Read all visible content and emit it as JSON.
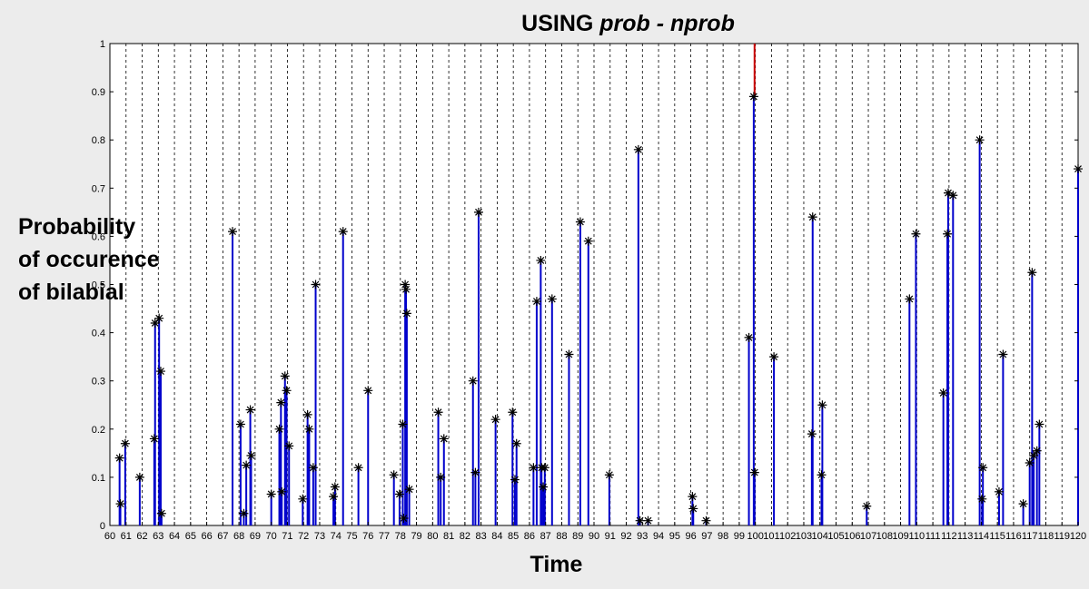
{
  "colors": {
    "stem": "#0000cc",
    "marker": "#000000",
    "marked": "#cc0000",
    "grid": "#000000",
    "plot_bg": "#ffffff"
  },
  "chart_data": {
    "type": "stem",
    "title_prefix": "USING",
    "title_var": "prob - nprob",
    "xlabel": "Time",
    "ylabel_lines": [
      "Probability",
      "of occurence",
      "of bilabial"
    ],
    "xlim": [
      60,
      120
    ],
    "ylim": [
      0,
      1
    ],
    "xticks": [
      60,
      61,
      62,
      63,
      64,
      65,
      66,
      67,
      68,
      69,
      70,
      71,
      72,
      73,
      74,
      75,
      76,
      77,
      78,
      79,
      80,
      81,
      82,
      83,
      84,
      85,
      86,
      87,
      88,
      89,
      90,
      91,
      92,
      93,
      94,
      95,
      96,
      97,
      98,
      99,
      100,
      101,
      102,
      103,
      104,
      105,
      106,
      107,
      108,
      109,
      110,
      111,
      112,
      113,
      114,
      115,
      116,
      117,
      118,
      119,
      120
    ],
    "yticks": [
      0,
      0.1,
      0.2,
      0.3,
      0.4,
      0.5,
      0.6,
      0.7,
      0.8,
      0.9,
      1
    ],
    "ytick_labels": [
      "0",
      "0.1",
      "0.2",
      "0.3",
      "0.4",
      "0.5",
      "0.6",
      "0.7",
      "0.8",
      "0.9",
      "1"
    ],
    "grid": "vertical dashed",
    "marked_time": 99.95,
    "marked_level": 0.89,
    "stems": [
      [
        60.6,
        0.14
      ],
      [
        60.65,
        0.045
      ],
      [
        60.95,
        0.17
      ],
      [
        61.85,
        0.1
      ],
      [
        62.75,
        0.18
      ],
      [
        62.8,
        0.42
      ],
      [
        63.05,
        0.43
      ],
      [
        63.15,
        0.32
      ],
      [
        63.2,
        0.025
      ],
      [
        67.6,
        0.61
      ],
      [
        68.1,
        0.21
      ],
      [
        68.3,
        0.025
      ],
      [
        68.45,
        0.125
      ],
      [
        68.7,
        0.24
      ],
      [
        68.75,
        0.145
      ],
      [
        70.0,
        0.065
      ],
      [
        70.5,
        0.2
      ],
      [
        70.6,
        0.255
      ],
      [
        70.65,
        0.07
      ],
      [
        70.85,
        0.31
      ],
      [
        70.95,
        0.28
      ],
      [
        71.1,
        0.165
      ],
      [
        71.95,
        0.055
      ],
      [
        72.25,
        0.23
      ],
      [
        72.35,
        0.2
      ],
      [
        72.6,
        0.12
      ],
      [
        72.75,
        0.5
      ],
      [
        73.85,
        0.06
      ],
      [
        73.95,
        0.08
      ],
      [
        74.45,
        0.61
      ],
      [
        75.4,
        0.12
      ],
      [
        76.0,
        0.28
      ],
      [
        77.6,
        0.105
      ],
      [
        77.95,
        0.065
      ],
      [
        78.15,
        0.21
      ],
      [
        78.2,
        0.015
      ],
      [
        78.3,
        0.5
      ],
      [
        78.35,
        0.49
      ],
      [
        78.4,
        0.44
      ],
      [
        78.55,
        0.075
      ],
      [
        80.35,
        0.235
      ],
      [
        80.5,
        0.1
      ],
      [
        80.7,
        0.18
      ],
      [
        82.5,
        0.3
      ],
      [
        82.65,
        0.11
      ],
      [
        82.85,
        0.65
      ],
      [
        83.9,
        0.22
      ],
      [
        84.95,
        0.235
      ],
      [
        85.1,
        0.095
      ],
      [
        85.2,
        0.17
      ],
      [
        86.25,
        0.12
      ],
      [
        86.45,
        0.465
      ],
      [
        86.7,
        0.55
      ],
      [
        86.75,
        0.12
      ],
      [
        86.85,
        0.08
      ],
      [
        86.95,
        0.12
      ],
      [
        87.4,
        0.47
      ],
      [
        88.45,
        0.355
      ],
      [
        89.15,
        0.63
      ],
      [
        89.65,
        0.59
      ],
      [
        90.95,
        0.105
      ],
      [
        92.75,
        0.78
      ],
      [
        92.85,
        0.01
      ],
      [
        93.35,
        0.01
      ],
      [
        96.1,
        0.06
      ],
      [
        96.15,
        0.035
      ],
      [
        96.95,
        0.01
      ],
      [
        99.6,
        0.39
      ],
      [
        99.9,
        0.89
      ],
      [
        99.95,
        0.11
      ],
      [
        101.15,
        0.35
      ],
      [
        103.5,
        0.19
      ],
      [
        103.55,
        0.64
      ],
      [
        104.1,
        0.105
      ],
      [
        104.15,
        0.25
      ],
      [
        106.9,
        0.04
      ],
      [
        109.55,
        0.47
      ],
      [
        109.95,
        0.605
      ],
      [
        111.65,
        0.275
      ],
      [
        111.9,
        0.605
      ],
      [
        111.95,
        0.69
      ],
      [
        112.25,
        0.685
      ],
      [
        113.9,
        0.8
      ],
      [
        114.05,
        0.055
      ],
      [
        114.1,
        0.12
      ],
      [
        115.1,
        0.07
      ],
      [
        115.35,
        0.355
      ],
      [
        116.6,
        0.045
      ],
      [
        117.0,
        0.13
      ],
      [
        117.15,
        0.525
      ],
      [
        117.25,
        0.145
      ],
      [
        117.45,
        0.155
      ],
      [
        117.6,
        0.21
      ],
      [
        120.0,
        0.74
      ]
    ]
  }
}
